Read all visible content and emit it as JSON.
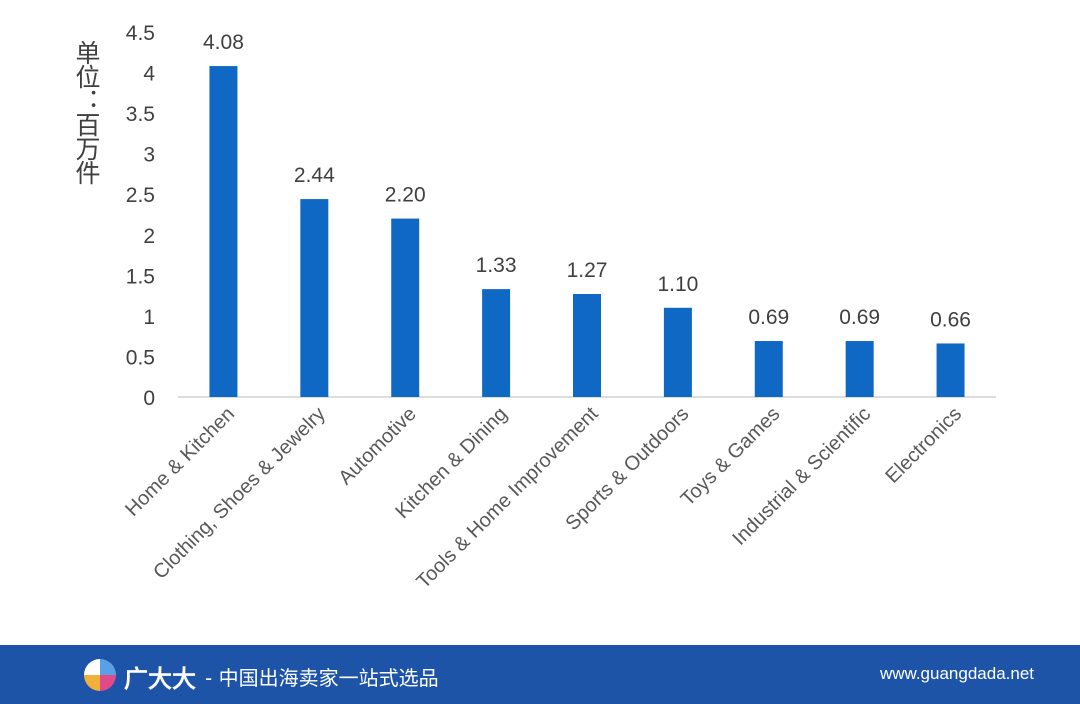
{
  "chart_data": {
    "type": "bar",
    "ylabel": "单位：百万件",
    "ylim": [
      0,
      4.5
    ],
    "y_ticks": [
      "0",
      "0.5",
      "1",
      "1.5",
      "2",
      "2.5",
      "3",
      "3.5",
      "4",
      "4.5"
    ],
    "categories": [
      "Home & Kitchen",
      "Clothing, Shoes & Jewelry",
      "Automotive",
      "Kitchen & Dining",
      "Tools & Home Improvement",
      "Sports & Outdoors",
      "Toys & Games",
      "Industrial & Scientific",
      "Electronics"
    ],
    "values": [
      4.08,
      2.44,
      2.2,
      1.33,
      1.27,
      1.1,
      0.69,
      0.69,
      0.66
    ],
    "data_labels": [
      "4.08",
      "2.44",
      "2.20",
      "1.33",
      "1.27",
      "1.10",
      "0.69",
      "0.69",
      "0.66"
    ],
    "bar_color": "#0f69c4",
    "grid": false
  },
  "footer": {
    "brand": "广大大",
    "tagline": "- 中国出海卖家一站式选品",
    "url": "www.guangdada.net",
    "background": "#1e54a8"
  }
}
